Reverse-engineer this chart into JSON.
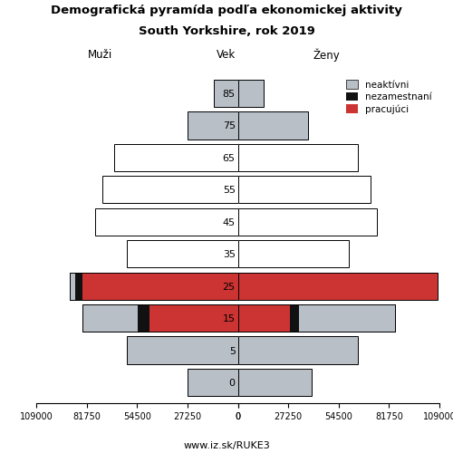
{
  "title_line1": "Demografická pyramída podľa ekonomickej aktivity",
  "title_line2": "South Yorkshire, rok 2019",
  "xlabel_left": "Muži",
  "xlabel_center": "Vek",
  "xlabel_right": "Ženy",
  "footer": "www.iz.sk/RUKE3",
  "age_groups": [
    0,
    5,
    15,
    25,
    35,
    45,
    55,
    65,
    75,
    85
  ],
  "colors": {
    "neaktivni": "#b8bfc6",
    "nezamestnani": "#111111",
    "pracujuci": "#cc3333",
    "white_bar": "#ffffff"
  },
  "legend_labels": [
    "neaktívni",
    "nezamestnaní",
    "pracujúci"
  ],
  "males": {
    "neaktivni": [
      27000,
      60000,
      30000,
      3000,
      60000,
      77000,
      73000,
      67000,
      27000,
      13000
    ],
    "nezamestnani": [
      0,
      0,
      6000,
      4000,
      0,
      0,
      0,
      0,
      0,
      0
    ],
    "pracujuci": [
      0,
      0,
      48000,
      84000,
      0,
      0,
      0,
      0,
      0,
      0
    ]
  },
  "females": {
    "neaktivni": [
      40000,
      65000,
      52000,
      0,
      60000,
      75000,
      72000,
      65000,
      38000,
      14000
    ],
    "nezamestnani": [
      0,
      0,
      5000,
      0,
      0,
      0,
      0,
      0,
      0,
      0
    ],
    "pracujuci": [
      0,
      0,
      28000,
      108000,
      0,
      0,
      0,
      0,
      0,
      0
    ]
  },
  "white_bars": {
    "males": [
      0,
      0,
      0,
      0,
      60000,
      77000,
      73000,
      67000,
      0,
      0
    ],
    "females": [
      0,
      0,
      0,
      0,
      60000,
      75000,
      72000,
      65000,
      0,
      0
    ]
  },
  "xlim": 109000,
  "xticks": [
    0,
    27250,
    54500,
    81750,
    109000
  ],
  "bar_height": 0.85,
  "background_color": "#ffffff",
  "border_color": "#000000"
}
